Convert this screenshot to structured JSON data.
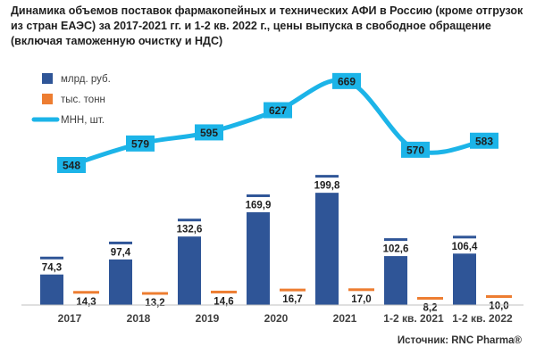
{
  "title": "Динамика объемов поставок фармакопейных и технических АФИ в Россию (кроме отгрузок из стран ЕАЭС) за 2017-2021 гг. и 1-2 кв. 2022 г., цены выпуска в свободное обращение (включая таможенную очистку и НДС)",
  "source": "Источник: RNC Pharma®",
  "colors": {
    "rub": "#2F5597",
    "ton": "#ED7D31",
    "mnn": "#1CB4E8"
  },
  "chart_data": {
    "type": "bar",
    "categories": [
      "2017",
      "2018",
      "2019",
      "2020",
      "2021",
      "1-2 кв. 2021",
      "1-2 кв. 2022"
    ],
    "series": [
      {
        "name": "млрд. руб.",
        "type": "bar",
        "values": [
          74.3,
          97.4,
          132.6,
          169.9,
          199.8,
          102.6,
          106.4
        ],
        "labels": [
          "74,3",
          "97,4",
          "132,6",
          "169,9",
          "199,8",
          "102,6",
          "106,4"
        ]
      },
      {
        "name": "тыс. тонн",
        "type": "bar",
        "values": [
          14.3,
          13.2,
          14.6,
          16.7,
          17.0,
          8.2,
          10.0
        ],
        "labels": [
          "14,3",
          "13,2",
          "14,6",
          "16,7",
          "17,0",
          "8,2",
          "10,0"
        ]
      },
      {
        "name": "МНН, шт.",
        "type": "line",
        "values": [
          548,
          579,
          595,
          627,
          669,
          570,
          583
        ],
        "labels": [
          "548",
          "579",
          "595",
          "627",
          "669",
          "570",
          "583"
        ]
      }
    ],
    "legend": "top-left",
    "grid": false
  }
}
